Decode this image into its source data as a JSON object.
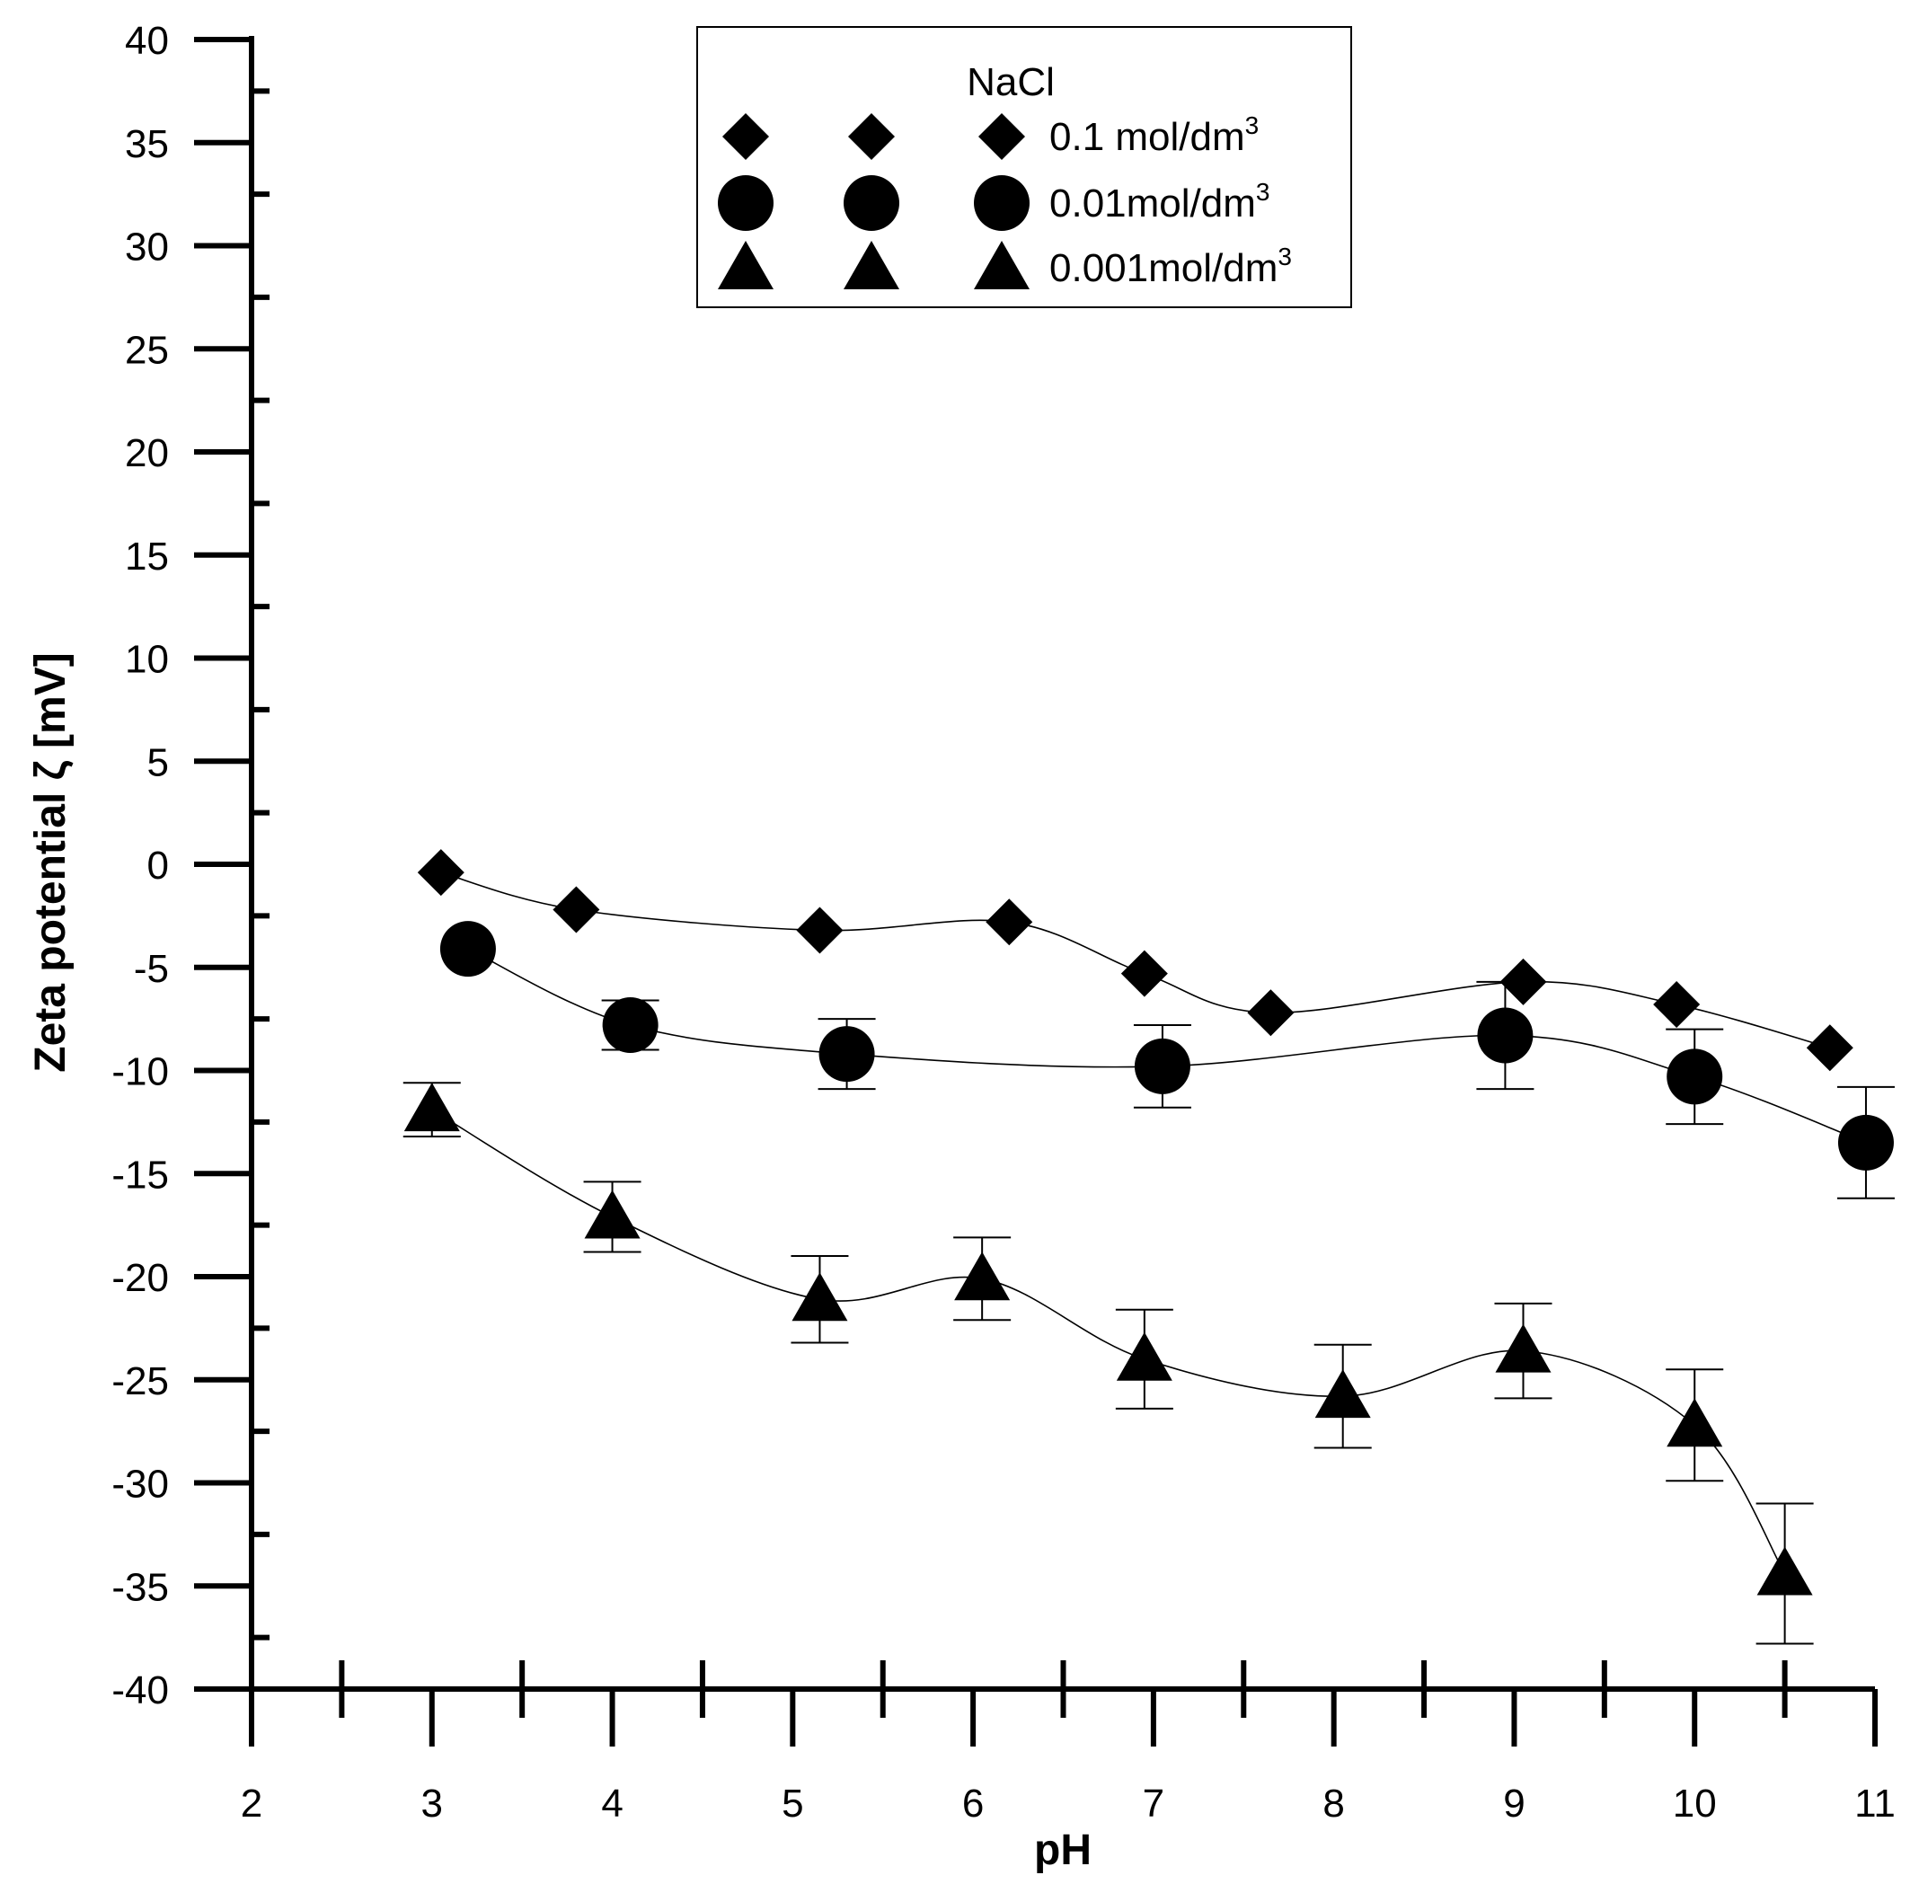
{
  "chart_data": {
    "type": "scatter",
    "xlabel": "pH",
    "ylabel": "Zeta potential ζ [mV]",
    "xlim": [
      2,
      11
    ],
    "ylim": [
      -40,
      40
    ],
    "x_ticks": [
      "2",
      "3",
      "4",
      "5",
      "6",
      "7",
      "8",
      "9",
      "10",
      "11"
    ],
    "y_ticks": [
      "40",
      "35",
      "30",
      "25",
      "20",
      "15",
      "10",
      "5",
      "0",
      "-5",
      "-10",
      "-15",
      "-20",
      "-25",
      "-30",
      "-35",
      "-40"
    ],
    "legend": {
      "title": "NaCl",
      "placement": "top-center",
      "entries": [
        {
          "marker": "diamond",
          "label_main": "0.1 mol/dm",
          "label_sup": "3"
        },
        {
          "marker": "circle",
          "label_main": "0.01mol/dm",
          "label_sup": "3"
        },
        {
          "marker": "triangle",
          "label_main": "0.001mol/dm",
          "label_sup": "3"
        }
      ]
    },
    "series": [
      {
        "name": "0.1 mol/dm3",
        "marker": "diamond",
        "x": [
          3.05,
          3.8,
          5.15,
          6.2,
          6.95,
          7.65,
          9.05,
          9.9,
          10.75
        ],
        "y": [
          -0.4,
          -2.2,
          -3.2,
          -2.8,
          -5.3,
          -7.2,
          -5.7,
          -6.8,
          -8.9
        ],
        "err": [
          null,
          null,
          null,
          null,
          null,
          null,
          null,
          null,
          null
        ]
      },
      {
        "name": "0.01mol/dm3",
        "marker": "circle",
        "x": [
          3.2,
          4.1,
          5.3,
          7.05,
          8.95,
          10.0,
          10.95
        ],
        "y": [
          -4.1,
          -7.8,
          -9.2,
          -9.8,
          -8.3,
          -10.3,
          -13.5
        ],
        "err": [
          null,
          1.2,
          1.7,
          2.0,
          2.6,
          2.3,
          2.7
        ]
      },
      {
        "name": "0.001mol/dm3",
        "marker": "triangle",
        "x": [
          3.0,
          4.0,
          5.15,
          6.05,
          6.95,
          8.05,
          9.05,
          10.0,
          10.5
        ],
        "y": [
          -11.9,
          -17.1,
          -21.1,
          -20.1,
          -24.0,
          -25.8,
          -23.6,
          -27.2,
          -34.4
        ],
        "err": [
          1.3,
          1.7,
          2.1,
          2.0,
          2.4,
          2.5,
          2.3,
          2.7,
          3.4
        ]
      }
    ]
  }
}
